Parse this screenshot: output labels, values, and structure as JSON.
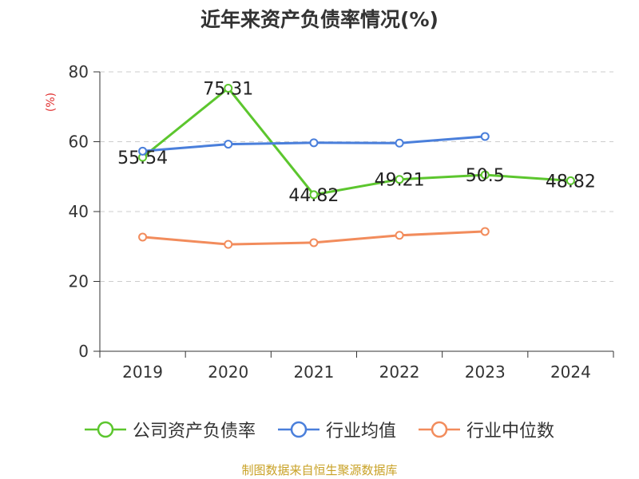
{
  "title": "近年来资产负债率情况(%)",
  "source": "制图数据来自恒生聚源数据库",
  "colors": {
    "company": "#5cc62e",
    "industry_avg": "#4a7fdb",
    "industry_median": "#f28c5c"
  },
  "chart_data": {
    "type": "line",
    "title": "近年来资产负债率情况(%)",
    "ylabel": "(%)",
    "xlabel": "",
    "ylim": [
      0,
      80
    ],
    "yticks": [
      0,
      20,
      40,
      60,
      80
    ],
    "grid": true,
    "legend_position": "bottom",
    "categories": [
      "2019",
      "2020",
      "2021",
      "2022",
      "2023",
      "2024"
    ],
    "series": [
      {
        "name": "公司资产负债率",
        "color": "#5cc62e",
        "values": [
          55.54,
          75.31,
          44.82,
          49.21,
          50.5,
          48.82
        ],
        "labels": [
          "55.54",
          "75.31",
          "44.82",
          "49.21",
          "50.5",
          "48.82"
        ]
      },
      {
        "name": "行业均值",
        "color": "#4a7fdb",
        "values": [
          57.3,
          59.3,
          59.7,
          59.6,
          61.5,
          null
        ]
      },
      {
        "name": "行业中位数",
        "color": "#f28c5c",
        "values": [
          32.7,
          30.6,
          31.1,
          33.2,
          34.3,
          null
        ]
      }
    ]
  }
}
